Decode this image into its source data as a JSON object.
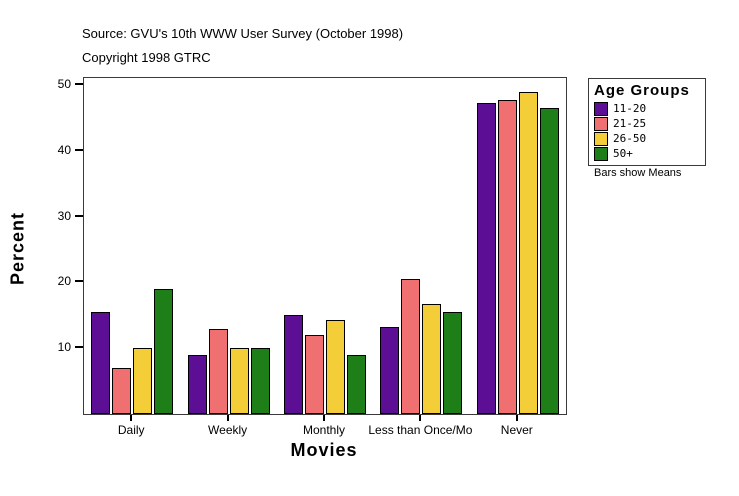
{
  "header": {
    "source": "Source: GVU's 10th WWW User Survey (October 1998)",
    "copyright": "Copyright 1998 GTRC"
  },
  "chart_data": {
    "type": "bar",
    "title": "",
    "xlabel": "Movies",
    "ylabel": "Percent",
    "ylim": [
      0,
      51
    ],
    "yticks": [
      10,
      20,
      30,
      40,
      50
    ],
    "grid": false,
    "categories": [
      "Daily",
      "Weekly",
      "Monthly",
      "Less than Once/Mo",
      "Never"
    ],
    "series": [
      {
        "name": "11-20",
        "color": "#5C0E94",
        "values": [
          15.5,
          9.0,
          15.0,
          13.2,
          47.2
        ]
      },
      {
        "name": "21-25",
        "color": "#F06F70",
        "values": [
          7.0,
          13.0,
          12.0,
          20.5,
          47.7
        ]
      },
      {
        "name": "26-50",
        "color": "#F3CE38",
        "values": [
          10.0,
          10.0,
          14.3,
          16.8,
          49.0
        ]
      },
      {
        "name": "50+",
        "color": "#1E7E18",
        "values": [
          19.0,
          10.0,
          9.0,
          15.5,
          46.5
        ]
      }
    ],
    "legend_title": "Age Groups",
    "legend_position": "right",
    "note": "Bars show Means"
  }
}
